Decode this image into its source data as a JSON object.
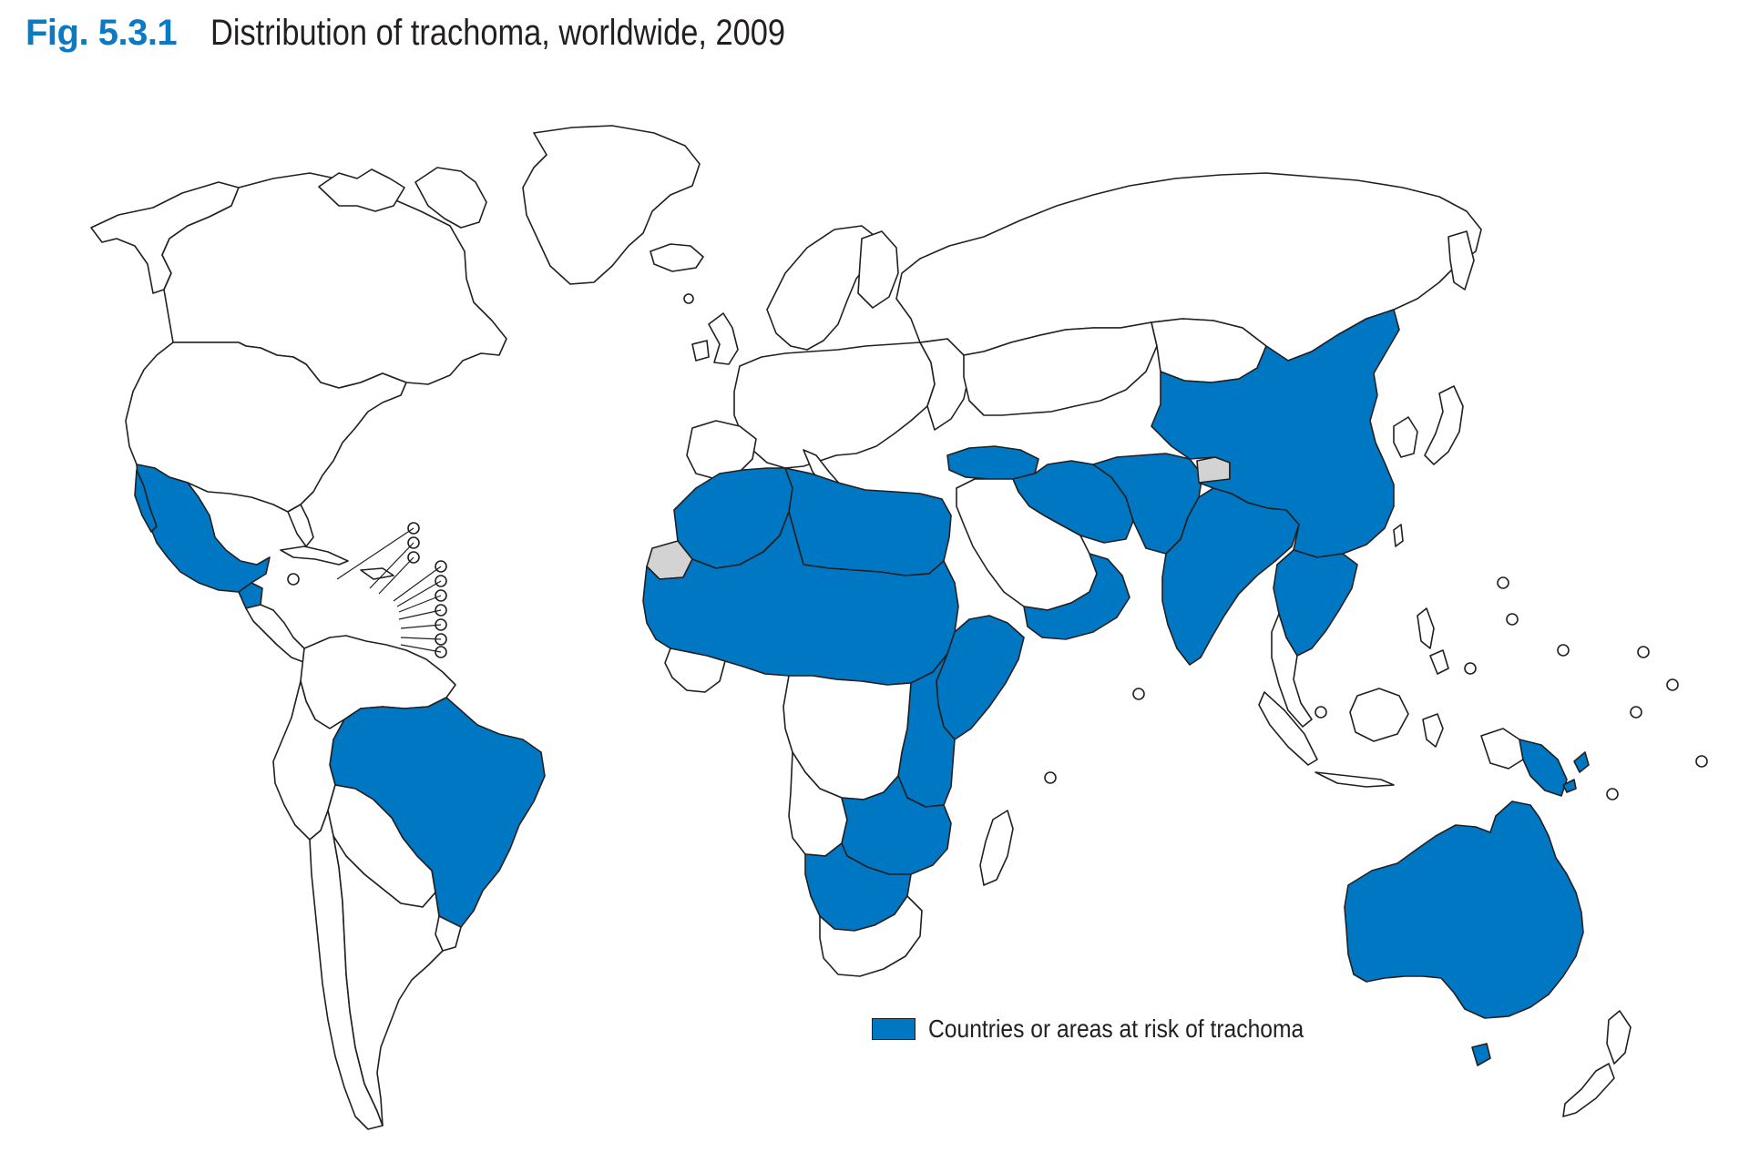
{
  "figure": {
    "number": "Fig. 5.3.1",
    "title": "Distribution of trachoma, worldwide, 2009"
  },
  "legend": {
    "label": "Countries or areas at risk of trachoma"
  },
  "colors": {
    "risk": "#0077c2",
    "not_applicable": "#d3d3d3",
    "land": "#ffffff",
    "border": "#231f20",
    "figure_number": "#0a7ac4"
  },
  "map_data": {
    "type": "choropleth",
    "category": "Countries or areas at risk of trachoma",
    "regions_at_risk": [
      "Mexico",
      "Guatemala",
      "Brazil",
      "Morocco",
      "Algeria",
      "Tunisia",
      "Libya",
      "Egypt",
      "Mauritania",
      "Mali",
      "Niger",
      "Chad",
      "Sudan",
      "Senegal",
      "Gambia",
      "Guinea-Bissau",
      "Guinea",
      "Burkina Faso",
      "Ghana",
      "Togo",
      "Benin",
      "Nigeria",
      "Cameroon",
      "Central African Republic",
      "Ethiopia",
      "Eritrea",
      "Djibouti",
      "Somalia",
      "Kenya",
      "Uganda",
      "United Republic of Tanzania",
      "Malawi",
      "Mozambique",
      "Zambia",
      "Zimbabwe",
      "Namibia",
      "Botswana",
      "South Sudan",
      "Turkey",
      "Iraq",
      "Iran",
      "Afghanistan",
      "Pakistan",
      "India",
      "Nepal",
      "China",
      "Myanmar",
      "Lao PDR",
      "Viet Nam",
      "Cambodia",
      "Oman",
      "Yemen",
      "Australia",
      "Papua New Guinea",
      "Solomon Islands"
    ],
    "regions_not_applicable": [
      "Western Sahara",
      "Jammu and Kashmir"
    ]
  }
}
